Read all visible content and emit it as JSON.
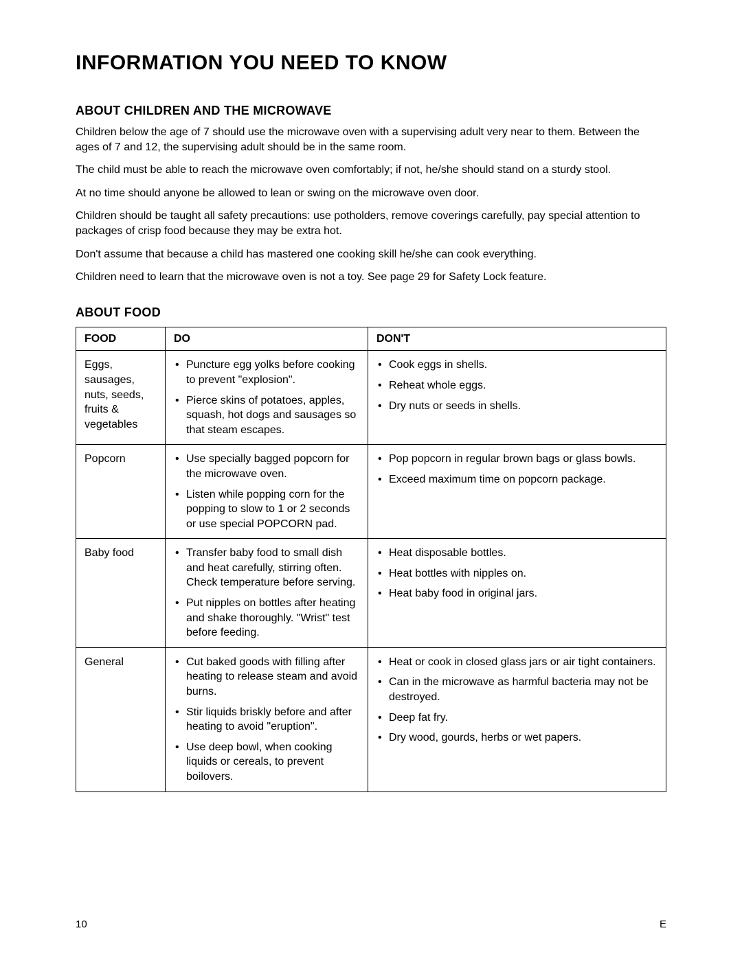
{
  "page_title": "INFORMATION YOU NEED TO KNOW",
  "section1": {
    "heading": "ABOUT CHILDREN AND THE MICROWAVE",
    "paragraphs": [
      "Children below the age of 7 should use the microwave oven with a supervising adult very near to them. Between the ages of 7 and 12, the supervising adult should be in the same room.",
      "The child must be able to reach the microwave oven comfortably; if not, he/she should stand on a sturdy stool.",
      "At no time should anyone be allowed to lean or swing on the microwave oven door.",
      "Children should be taught all safety precautions: use potholders, remove coverings carefully, pay special attention to packages of crisp food because they may be extra hot.",
      "Don't assume that because a child has mastered one cooking skill he/she can cook everything.",
      "Children need to learn that the microwave oven is not a toy. See page 29 for Safety Lock feature."
    ]
  },
  "section2": {
    "heading": "ABOUT FOOD",
    "table": {
      "headers": [
        "FOOD",
        "DO",
        "DON'T"
      ],
      "rows": [
        {
          "food": "Eggs, sausages, nuts, seeds, fruits & vegetables",
          "do": [
            "Puncture egg yolks before cooking to prevent \"explosion\".",
            "Pierce skins of potatoes, apples, squash, hot dogs and sausages so that steam escapes."
          ],
          "dont": [
            "Cook eggs in shells.",
            "Reheat whole eggs.",
            "Dry nuts or seeds in shells."
          ]
        },
        {
          "food": "Popcorn",
          "do": [
            "Use specially bagged popcorn for the microwave oven.",
            "Listen while popping corn for the popping to slow to 1 or 2 seconds or use special POPCORN pad."
          ],
          "dont": [
            "Pop popcorn in regular brown bags or glass bowls.",
            "Exceed maximum time on popcorn package."
          ]
        },
        {
          "food": "Baby food",
          "do": [
            "Transfer baby food to small dish and heat carefully, stirring often. Check temperature before serving.",
            "Put nipples on bottles after heating and shake thoroughly. \"Wrist\" test before feeding."
          ],
          "dont": [
            "Heat disposable bottles.",
            "Heat bottles with nipples on.",
            "Heat baby food in original jars."
          ]
        },
        {
          "food": "General",
          "do": [
            "Cut baked goods with filling after heating to release steam and avoid burns.",
            "Stir liquids briskly before and after heating to avoid \"eruption\".",
            "Use deep bowl, when cooking liquids or cereals, to prevent boilovers."
          ],
          "dont": [
            "Heat or cook in closed glass jars or air tight containers.",
            "Can in the microwave as harmful bacteria may not be destroyed.",
            "Deep fat fry.",
            "Dry wood, gourds, herbs or wet papers."
          ]
        }
      ]
    }
  },
  "footer": {
    "page_number": "10",
    "marker": "E"
  }
}
